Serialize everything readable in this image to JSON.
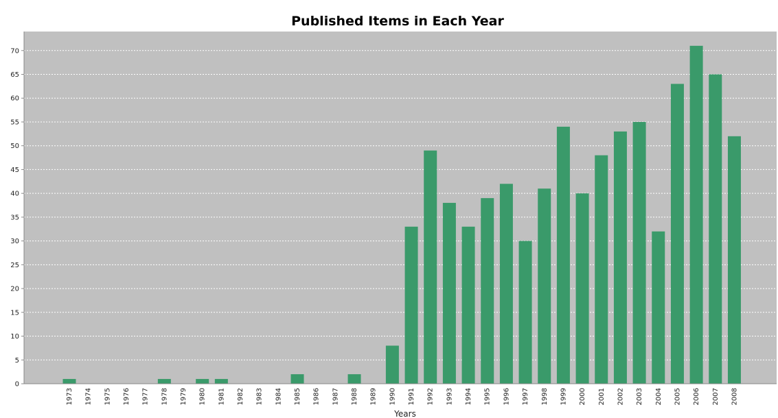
{
  "chart_data": {
    "type": "bar",
    "title": "Published Items in Each Year",
    "xlabel": "Years",
    "ylabel": "",
    "ylim": [
      0,
      74
    ],
    "yticks": [
      0,
      5,
      10,
      15,
      20,
      25,
      30,
      35,
      40,
      45,
      50,
      55,
      60,
      65,
      70
    ],
    "grid": true,
    "legend": "none",
    "colors": {
      "bar": "#3a9a6a",
      "plot_background": "#c0c0c0",
      "gridline": "#ffffff",
      "axis": "#888888"
    },
    "categories": [
      "1973",
      "1974",
      "1975",
      "1976",
      "1977",
      "1978",
      "1979",
      "1980",
      "1981",
      "1982",
      "1983",
      "1984",
      "1985",
      "1986",
      "1987",
      "1988",
      "1989",
      "1990",
      "1991",
      "1992",
      "1993",
      "1994",
      "1995",
      "1996",
      "1997",
      "1998",
      "1999",
      "2000",
      "2001",
      "2002",
      "2003",
      "2004",
      "2005",
      "2006",
      "2007",
      "2008"
    ],
    "values": [
      1,
      0,
      0,
      0,
      0,
      1,
      0,
      1,
      1,
      0,
      0,
      0,
      2,
      0,
      0,
      2,
      0,
      8,
      33,
      49,
      38,
      33,
      39,
      42,
      30,
      41,
      54,
      40,
      48,
      53,
      55,
      32,
      63,
      71,
      65,
      52
    ]
  }
}
